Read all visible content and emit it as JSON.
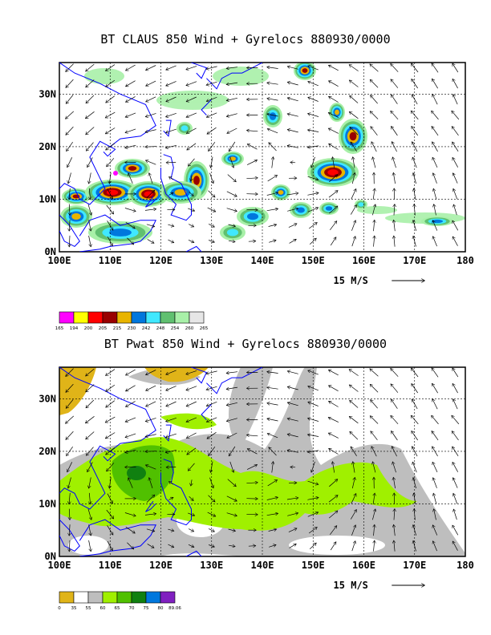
{
  "panels": [
    {
      "title": "BT CLAUS 850 Wind + Gyrelocs 880930/0000",
      "lon_labels": [
        "100E",
        "110E",
        "120E",
        "130E",
        "140E",
        "150E",
        "160E",
        "170E",
        "180"
      ],
      "lat_labels": [
        "0N",
        "10N",
        "20N",
        "30N"
      ],
      "vector_scale_label": "15 M/S",
      "colorbar": {
        "colors": [
          "#ff00ff",
          "#ffff00",
          "#ff0000",
          "#990000",
          "#e8b400",
          "#0077dd",
          "#40e8ff",
          "#60c070",
          "#a8f0a8",
          "#e6e6e6"
        ],
        "labels": [
          "165",
          "194",
          "200",
          "205",
          "215",
          "230",
          "242",
          "248",
          "254",
          "260",
          "265"
        ]
      }
    },
    {
      "title": "BT Pwat 850 Wind + Gyrelocs 880930/0000",
      "lon_labels": [
        "100E",
        "110E",
        "120E",
        "130E",
        "140E",
        "150E",
        "160E",
        "170E",
        "180"
      ],
      "lat_labels": [
        "0N",
        "10N",
        "20N",
        "30N"
      ],
      "vector_scale_label": "15 M/S",
      "colorbar": {
        "colors": [
          "#e0b418",
          "#ffffff",
          "#bebebe",
          "#a0f000",
          "#50c000",
          "#108010",
          "#0077dd",
          "#8020c0"
        ],
        "labels": [
          "0",
          "35",
          "55",
          "60",
          "65",
          "70",
          "75",
          "80",
          "89.06"
        ]
      }
    }
  ],
  "map": {
    "lon_range": [
      100,
      180
    ],
    "lat_range": [
      0,
      36
    ]
  }
}
